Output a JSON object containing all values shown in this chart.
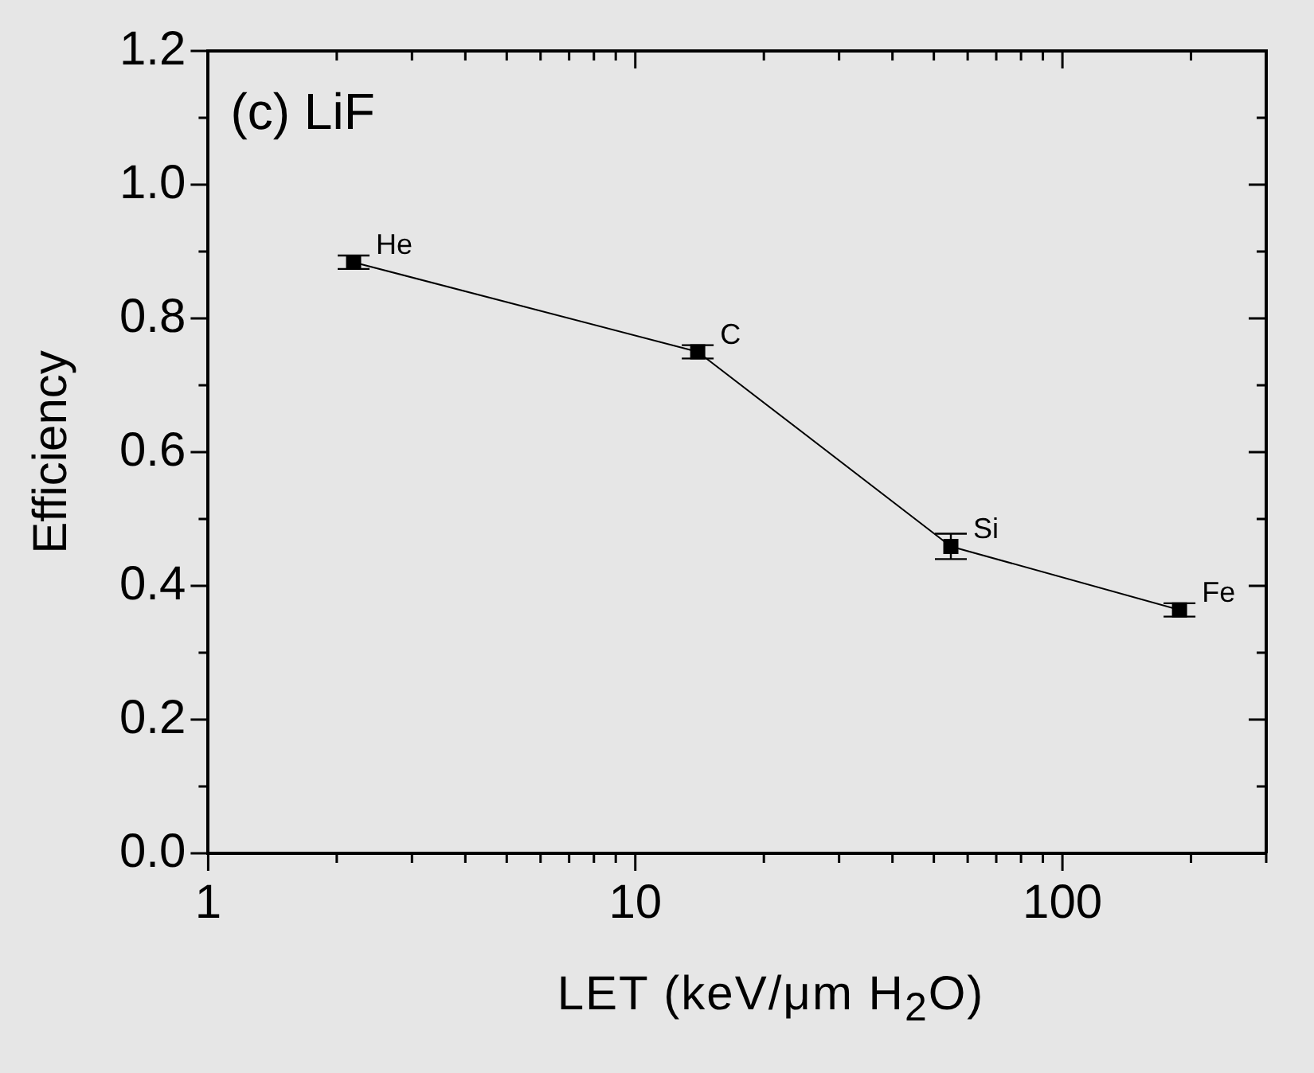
{
  "chart_data": {
    "type": "line",
    "xlabel": "LET (keV/μm H$_{2}$O)",
    "ylabel": "Efficiency",
    "log": "x",
    "x": [
      2.19,
      14.0,
      54.8,
      188
    ],
    "series": [
      {
        "color": "#000000",
        "values": [
          0.884,
          0.75,
          0.459,
          0.364
        ],
        "errors": [
          0.01,
          0.01,
          0.019,
          0.01
        ]
      }
    ],
    "marker": "square",
    "line_style": "solid",
    "grid": false,
    "legend": false,
    "xlim": [
      1,
      300
    ],
    "xticks": [
      1,
      {
        "value": 2,
        "label": null
      },
      {
        "value": 3,
        "label": null
      },
      {
        "value": 4,
        "label": null
      },
      {
        "value": 5,
        "label": null
      },
      {
        "value": 6,
        "label": null
      },
      {
        "value": 7,
        "label": null
      },
      {
        "value": 8,
        "label": null
      },
      {
        "value": 9,
        "label": null
      },
      10,
      {
        "value": 20,
        "label": null
      },
      {
        "value": 30,
        "label": null
      },
      {
        "value": 40,
        "label": null
      },
      {
        "value": 50,
        "label": null
      },
      {
        "value": 60,
        "label": null
      },
      {
        "value": 70,
        "label": null
      },
      {
        "value": 80,
        "label": null
      },
      {
        "value": 90,
        "label": null
      },
      100,
      {
        "value": 200,
        "label": null
      },
      {
        "value": 300,
        "label": null
      }
    ],
    "ylim": [
      0,
      1.2
    ],
    "yticks": [
      {
        "value": 0,
        "label": "0.0"
      },
      {
        "value": 0.1,
        "label": null
      },
      {
        "value": 0.2,
        "label": "0.2"
      },
      {
        "value": 0.3,
        "label": null
      },
      {
        "value": 0.4,
        "label": "0.4"
      },
      {
        "value": 0.5,
        "label": null
      },
      {
        "value": 0.6,
        "label": "0.6"
      },
      {
        "value": 0.7,
        "label": null
      },
      {
        "value": 0.8,
        "label": "0.8"
      },
      {
        "value": 0.9,
        "label": null
      },
      {
        "value": 1.0,
        "label": "1.0"
      },
      {
        "value": 1.1,
        "label": null
      },
      {
        "value": 1.2,
        "label": "1.2"
      }
    ],
    "annotations": [
      "(c) LiF",
      {
        "text": "He",
        "x": 2.19,
        "y": 0.884
      },
      {
        "text": "C",
        "x": 14.0,
        "y": 0.75
      },
      {
        "text": "Si",
        "x": 54.8,
        "y": 0.459
      },
      {
        "text": "Fe",
        "x": 188,
        "y": 0.364
      }
    ]
  }
}
